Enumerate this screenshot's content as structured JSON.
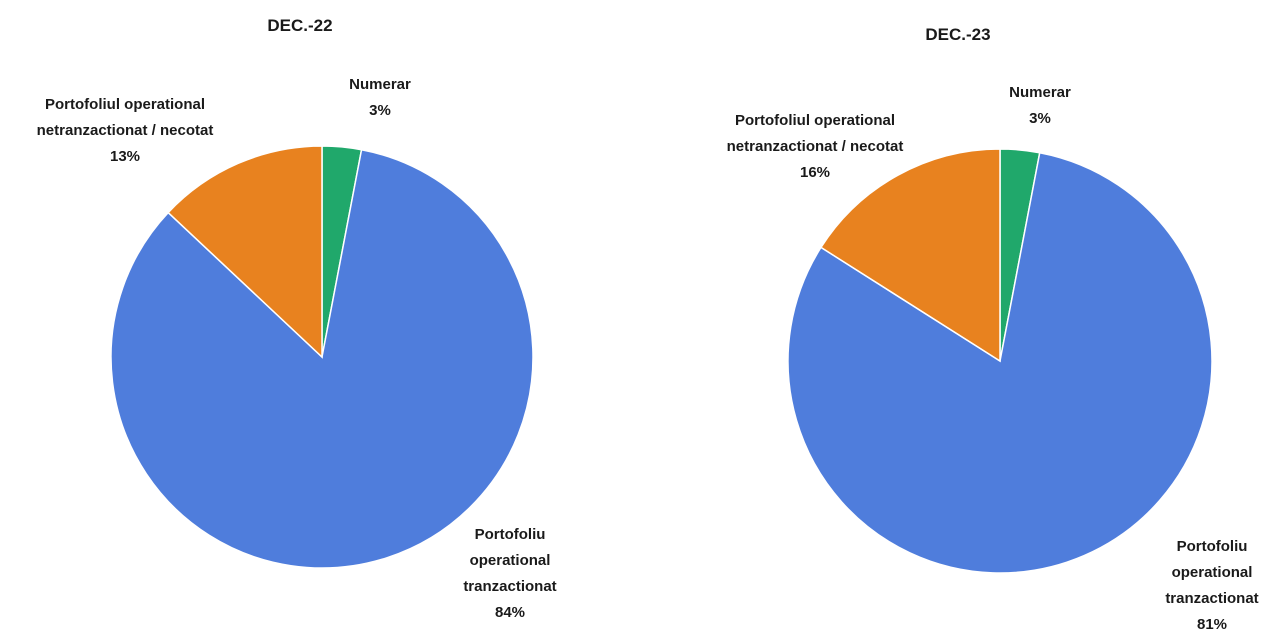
{
  "chart_data": [
    {
      "type": "pie",
      "title": "DEC.-22",
      "categories": [
        "Numerar",
        "Portofoliu operational tranzactionat",
        "Portofoliul operational netranzactionat / necotat"
      ],
      "values": [
        3,
        84,
        13
      ],
      "value_labels": [
        "3%",
        "84%",
        "13%"
      ],
      "colors": [
        "#20a86b",
        "#4f7ddc",
        "#e8821f"
      ]
    },
    {
      "type": "pie",
      "title": "DEC.-23",
      "categories": [
        "Numerar",
        "Portofoliu operational tranzactionat",
        "Portofoliul operational netranzactionat / necotat"
      ],
      "values": [
        3,
        81,
        16
      ],
      "value_labels": [
        "3%",
        "81%",
        "16%"
      ],
      "colors": [
        "#20a86b",
        "#4f7ddc",
        "#e8821f"
      ]
    }
  ]
}
